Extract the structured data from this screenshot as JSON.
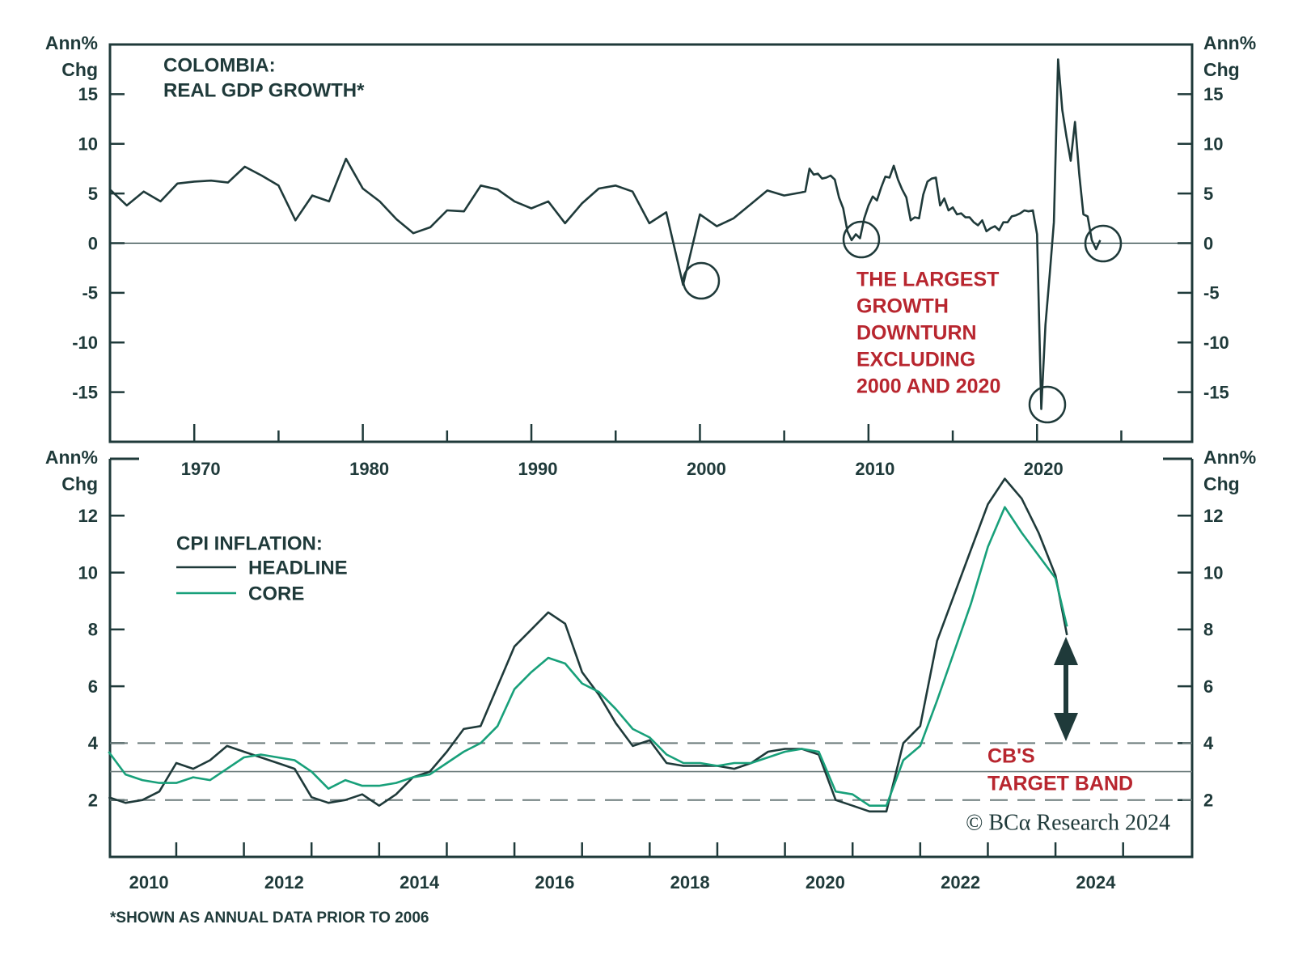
{
  "chart_data": [
    {
      "type": "line",
      "title": [
        "COLOMBIA:",
        "REAL GDP GROWTH*"
      ],
      "y_label": [
        "Ann%",
        "Chg"
      ],
      "x": [
        1965,
        1966,
        1967,
        1968,
        1969,
        1970,
        1971,
        1972,
        1973,
        1974,
        1975,
        1976,
        1977,
        1978,
        1979,
        1980,
        1981,
        1982,
        1983,
        1984,
        1985,
        1986,
        1987,
        1988,
        1989,
        1990,
        1991,
        1992,
        1993,
        1994,
        1995,
        1996,
        1997,
        1998,
        1999,
        2000,
        2001,
        2002,
        2003,
        2004,
        2005,
        2006,
        2006.25,
        2006.5,
        2006.75,
        2007,
        2007.25,
        2007.5,
        2007.75,
        2008,
        2008.25,
        2008.5,
        2008.75,
        2009,
        2009.25,
        2009.5,
        2009.75,
        2010,
        2010.25,
        2010.5,
        2010.75,
        2011,
        2011.25,
        2011.5,
        2011.75,
        2012,
        2012.25,
        2012.5,
        2012.75,
        2013,
        2013.25,
        2013.5,
        2013.75,
        2014,
        2014.25,
        2014.5,
        2014.75,
        2015,
        2015.25,
        2015.5,
        2015.75,
        2016,
        2016.25,
        2016.5,
        2016.75,
        2017,
        2017.25,
        2017.5,
        2017.75,
        2018,
        2018.25,
        2018.5,
        2018.75,
        2019,
        2019.25,
        2019.5,
        2019.75,
        2020,
        2020.25,
        2020.5,
        2020.75,
        2021,
        2021.25,
        2021.5,
        2021.75,
        2022,
        2022.25,
        2022.5,
        2022.75,
        2023,
        2023.25,
        2023.5,
        2023.75
      ],
      "series": [
        {
          "color": "#1f3a3a",
          "values": [
            5.4,
            3.8,
            5.2,
            4.2,
            6.0,
            6.2,
            6.3,
            6.1,
            7.7,
            6.8,
            5.8,
            2.3,
            4.8,
            4.2,
            8.5,
            5.5,
            4.2,
            2.4,
            1.0,
            1.6,
            3.3,
            3.2,
            5.8,
            5.4,
            4.2,
            3.5,
            4.2,
            2.0,
            4.0,
            5.5,
            5.8,
            5.2,
            2.0,
            3.1,
            -4.2,
            2.9,
            1.7,
            2.5,
            3.9,
            5.3,
            4.8,
            5.1,
            5.2,
            7.5,
            6.9,
            7.0,
            6.5,
            6.6,
            6.8,
            6.4,
            4.6,
            3.5,
            1.2,
            0.3,
            0.9,
            0.5,
            2.5,
            3.8,
            4.7,
            4.3,
            5.6,
            6.7,
            6.6,
            7.8,
            6.4,
            5.4,
            4.6,
            2.3,
            2.6,
            2.5,
            4.9,
            6.2,
            6.5,
            6.6,
            3.8,
            4.5,
            3.3,
            3.6,
            2.9,
            3.0,
            2.6,
            2.6,
            2.1,
            1.8,
            2.3,
            1.2,
            1.5,
            1.7,
            1.3,
            2.1,
            2.1,
            2.7,
            2.8,
            3.0,
            3.3,
            3.2,
            3.3,
            0.9,
            -16.7,
            -8.2,
            -3.2,
            2.1,
            18.5,
            13.4,
            10.7,
            8.3,
            12.2,
            7.0,
            2.9,
            2.7,
            0.3,
            -0.6,
            0.3
          ]
        }
      ],
      "xlim": [
        1965,
        2029.2
      ],
      "ylim": [
        -20,
        20
      ],
      "xticks": [
        1970,
        1980,
        1990,
        2000,
        2010,
        2020
      ],
      "minor_xticks": [
        1965,
        1975,
        1985,
        1995,
        2005,
        2015,
        2025
      ],
      "yticks": [
        -15,
        -10,
        -5,
        0,
        5,
        10,
        15
      ],
      "zero_line": true,
      "right_axis": true,
      "major_tick_marks": true,
      "annotation": [
        "THE LARGEST",
        "GROWTH",
        "DOWNTURN",
        "EXCLUDING",
        "2000 AND 2020"
      ],
      "annotation_color": "#b8262f"
    },
    {
      "type": "line",
      "legend_title": "CPI INFLATION:",
      "y_label": [
        "Ann%",
        "Chg"
      ],
      "x": [
        2009.5,
        2009.75,
        2010,
        2010.25,
        2010.5,
        2010.75,
        2011,
        2011.25,
        2011.5,
        2011.75,
        2012,
        2012.25,
        2012.5,
        2012.75,
        2013,
        2013.25,
        2013.5,
        2013.75,
        2014,
        2014.25,
        2014.5,
        2014.75,
        2015,
        2015.25,
        2015.5,
        2015.75,
        2016,
        2016.25,
        2016.5,
        2016.75,
        2017,
        2017.25,
        2017.5,
        2017.75,
        2018,
        2018.25,
        2018.5,
        2018.75,
        2019,
        2019.25,
        2019.5,
        2019.75,
        2020,
        2020.25,
        2020.5,
        2020.75,
        2021,
        2021.25,
        2021.5,
        2021.75,
        2022,
        2022.25,
        2022.5,
        2022.75,
        2023,
        2023.25,
        2023.5,
        2023.67
      ],
      "series": [
        {
          "name": "HEADLINE",
          "color": "#1f3a3a",
          "values": [
            2.1,
            1.9,
            2.0,
            2.3,
            3.3,
            3.1,
            3.4,
            3.9,
            3.7,
            3.5,
            3.3,
            3.1,
            2.1,
            1.9,
            2.0,
            2.2,
            1.8,
            2.2,
            2.8,
            3.0,
            3.7,
            4.5,
            4.6,
            6.0,
            7.4,
            8.0,
            8.6,
            8.2,
            6.5,
            5.7,
            4.7,
            3.9,
            4.1,
            3.3,
            3.2,
            3.2,
            3.2,
            3.1,
            3.3,
            3.7,
            3.8,
            3.8,
            3.6,
            2.0,
            1.8,
            1.6,
            1.6,
            4.0,
            4.6,
            7.6,
            9.2,
            10.8,
            12.4,
            13.3,
            12.6,
            11.4,
            9.9,
            7.8
          ]
        },
        {
          "name": "CORE",
          "color": "#18a07a",
          "values": [
            3.7,
            2.9,
            2.7,
            2.6,
            2.6,
            2.8,
            2.7,
            3.1,
            3.5,
            3.6,
            3.5,
            3.4,
            3.0,
            2.4,
            2.7,
            2.5,
            2.5,
            2.6,
            2.8,
            2.9,
            3.3,
            3.7,
            4.0,
            4.6,
            5.9,
            6.5,
            7.0,
            6.8,
            6.1,
            5.8,
            5.2,
            4.5,
            4.2,
            3.6,
            3.3,
            3.3,
            3.2,
            3.3,
            3.3,
            3.5,
            3.7,
            3.8,
            3.7,
            2.3,
            2.2,
            1.8,
            1.8,
            3.4,
            3.9,
            5.5,
            7.2,
            8.9,
            10.9,
            12.3,
            11.4,
            10.6,
            9.8,
            8.1
          ]
        }
      ],
      "xlim": [
        2009.52,
        2025.52
      ],
      "ylim": [
        0,
        14
      ],
      "xticks": [
        2010,
        2012,
        2014,
        2016,
        2018,
        2020,
        2022,
        2024
      ],
      "minor_xticks": [
        2010.5,
        2011.5,
        2012.5,
        2013.5,
        2014.5,
        2015.5,
        2016.5,
        2017.5,
        2018.5,
        2019.5,
        2020.5,
        2021.5,
        2022.5,
        2023.5,
        2024.5
      ],
      "yticks": [
        2,
        4,
        6,
        8,
        10,
        12
      ],
      "right_axis": true,
      "major_tick_marks": false,
      "target_band": [
        2,
        4
      ],
      "target": 3,
      "band_label": [
        "CB'S",
        "TARGET BAND"
      ],
      "band_label_color": "#b8262f",
      "credit": "© BCα Research 2024",
      "footnote": "*SHOWN AS ANNUAL DATA PRIOR TO 2006"
    }
  ]
}
